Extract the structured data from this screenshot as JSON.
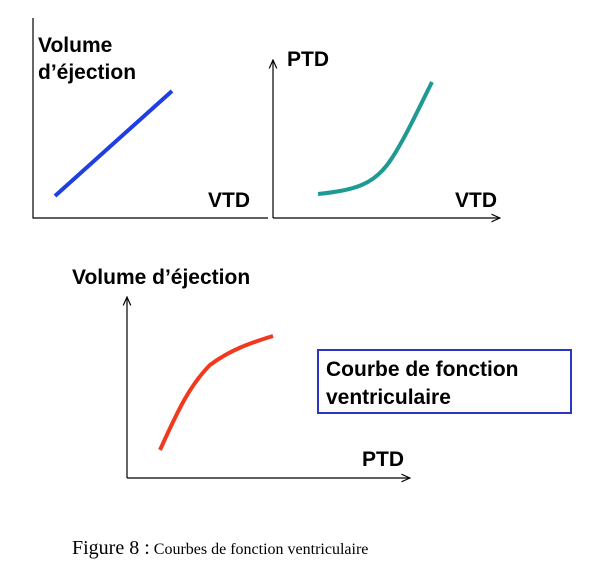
{
  "panels": [
    {
      "y_label": [
        "Volume",
        "d’éjection"
      ],
      "x_label": "VTD"
    },
    {
      "y_label": [
        "PTD"
      ],
      "x_label": "VTD"
    },
    {
      "y_label": [
        "Volume d’éjection"
      ],
      "x_label": "PTD",
      "box": [
        "Courbe de fonction",
        "ventriculaire"
      ]
    }
  ],
  "caption": {
    "label": "Figure 8 :",
    "text": "Courbes de fonction ventriculaire"
  }
}
